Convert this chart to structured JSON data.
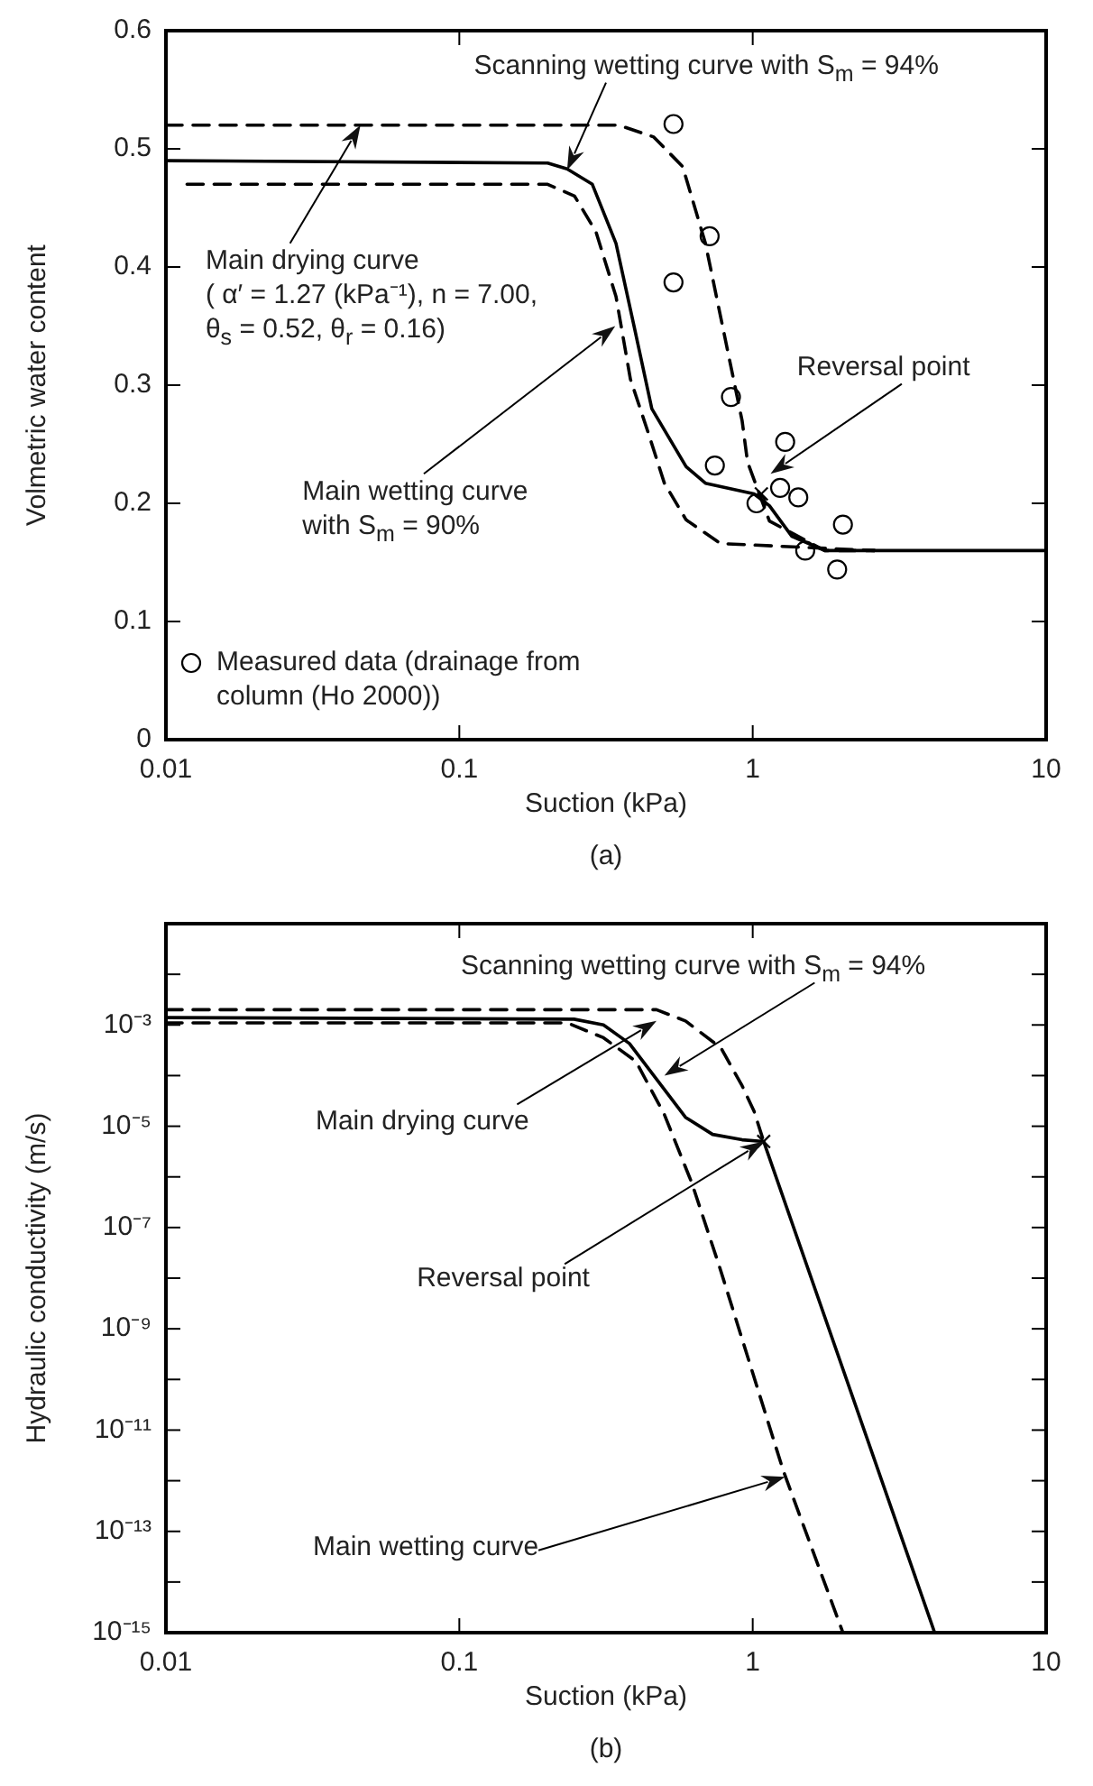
{
  "chart_data": [
    {
      "type": "line",
      "xlabel": "Suction (kPa)",
      "ylabel": "Volmetric water content",
      "log": "x",
      "xlim": [
        0.01,
        10
      ],
      "xticks": [
        0.01,
        0.1,
        1,
        10
      ],
      "ylim": [
        0,
        0.6
      ],
      "yticks": [
        0,
        0.1,
        0.2,
        0.3,
        0.4,
        0.5,
        0.6
      ],
      "grid": false,
      "legend": "bottom left",
      "series": [
        {
          "type": "line",
          "line_style": "dashed",
          "marker": "none",
          "color": "#000000",
          "x": [
            0.01,
            0.35,
            0.46,
            0.577,
            0.69,
            0.82,
            0.92,
            0.96,
            1.14,
            1.76,
            2.6
          ],
          "values": [
            0.52,
            0.52,
            0.51,
            0.485,
            0.42,
            0.33,
            0.27,
            0.235,
            0.185,
            0.16,
            0.16
          ]
        },
        {
          "type": "line",
          "line_style": "dashed",
          "marker": "none",
          "color": "#000000",
          "x": [
            0.0118,
            0.2,
            0.247,
            0.292,
            0.342,
            0.383,
            0.44,
            0.5,
            0.593,
            0.776,
            2.6
          ],
          "values": [
            0.47,
            0.47,
            0.46,
            0.43,
            0.375,
            0.305,
            0.26,
            0.217,
            0.186,
            0.166,
            0.16
          ]
        },
        {
          "type": "line",
          "line_style": "solid",
          "marker": "none",
          "color": "#000000",
          "x": [
            0.01,
            0.2,
            0.233,
            0.284,
            0.342,
            0.394,
            0.453,
            0.593,
            0.69,
            1.01,
            1.14,
            1.36,
            1.76,
            10
          ],
          "values": [
            0.49,
            0.488,
            0.483,
            0.47,
            0.42,
            0.35,
            0.28,
            0.231,
            0.217,
            0.208,
            0.198,
            0.172,
            0.16,
            0.16
          ]
        },
        {
          "type": "scatter",
          "name": "Measured data (drainage from column (Ho 2000))",
          "marker": "circle",
          "color": "#000000",
          "x": [
            0.537,
            0.713,
            0.537,
            0.843,
            0.743,
            1.29,
            1.24,
            1.43,
            1.03,
            2.03,
            1.51,
            1.94
          ],
          "values": [
            0.521,
            0.426,
            0.387,
            0.29,
            0.232,
            0.252,
            0.213,
            0.205,
            0.2,
            0.182,
            0.16,
            0.144
          ]
        },
        {
          "type": "scatter",
          "marker": "cross",
          "color": "#000000",
          "x": [
            1.07
          ],
          "values": [
            0.208
          ]
        }
      ],
      "annotations": [
        "Scanning wetting curve with S$_{m}$ = 94%",
        "Main drying curve\n( α′ = 1.27 (kPa⁻¹), n = 7.00,\nθ$_{s}$ = 0.52, θ$_{r}$ = 0.16)",
        "Main wetting curve\nwith S$_{m}$ = 90%",
        "Reversal point",
        "(a)"
      ]
    },
    {
      "type": "line",
      "xlabel": "Suction (kPa)",
      "ylabel": "Hydraulic conductivity (m/s)",
      "log": "xy",
      "xlim": [
        0.01,
        10
      ],
      "xticks": [
        0.01,
        0.1,
        1,
        10
      ],
      "ylim": [
        1e-15,
        0.1
      ],
      "yticks": [
        {
          "value": 1e-15,
          "label": "10⁻¹⁵"
        },
        {
          "value": 1e-14,
          "label": null
        },
        {
          "value": 1e-13,
          "label": "10⁻¹³"
        },
        {
          "value": 1e-12,
          "label": null
        },
        {
          "value": 1e-11,
          "label": "10⁻¹¹"
        },
        {
          "value": 1e-10,
          "label": null
        },
        {
          "value": 1e-09,
          "label": "10⁻⁹"
        },
        {
          "value": 1e-08,
          "label": null
        },
        {
          "value": 1e-07,
          "label": "10⁻⁷"
        },
        {
          "value": 1e-06,
          "label": null
        },
        {
          "value": 1e-05,
          "label": "10⁻⁵"
        },
        {
          "value": 0.0001,
          "label": null
        },
        {
          "value": 0.001,
          "label": "10⁻³"
        },
        {
          "value": 0.01,
          "label": null
        }
      ],
      "grid": false,
      "series": [
        {
          "type": "line",
          "line_style": "dashed",
          "marker": "none",
          "color": "#000000",
          "x": [
            0.01,
            0.47,
            0.59,
            0.78,
            0.92,
            1.01,
            1.09
          ],
          "values": [
            0.002,
            0.002,
            0.0012,
            0.00035,
            6.3e-05,
            2e-05,
            5e-06
          ]
        },
        {
          "type": "line",
          "line_style": "dashed",
          "marker": "none",
          "color": "#000000",
          "x": [
            0.01,
            0.233,
            0.31,
            0.4,
            0.5,
            0.62,
            0.77,
            0.86,
            1.27,
            2.03
          ],
          "values": [
            0.0011,
            0.0011,
            0.00056,
            0.00019,
            1.7e-05,
            7.6e-07,
            1.7e-08,
            2.2e-09,
            1.6e-12,
            1e-15
          ]
        },
        {
          "type": "line",
          "line_style": "solid",
          "marker": "none",
          "color": "#000000",
          "x": [
            0.01,
            0.246,
            0.31,
            0.38,
            0.47,
            0.59,
            0.73,
            0.92,
            1.09,
            4.17
          ],
          "values": [
            0.0014,
            0.0013,
            0.001,
            0.00043,
            8.5e-05,
            1.5e-05,
            6.9e-06,
            5.4e-06,
            5e-06,
            1e-15
          ]
        },
        {
          "type": "scatter",
          "marker": "cross",
          "color": "#000000",
          "x": [
            1.09
          ],
          "values": [
            5e-06
          ]
        }
      ],
      "annotations": [
        "Scanning wetting curve with S$_{m}$ = 94%",
        "Main drying curve",
        "Reversal point",
        "Main wetting curve",
        "(b)"
      ]
    }
  ]
}
